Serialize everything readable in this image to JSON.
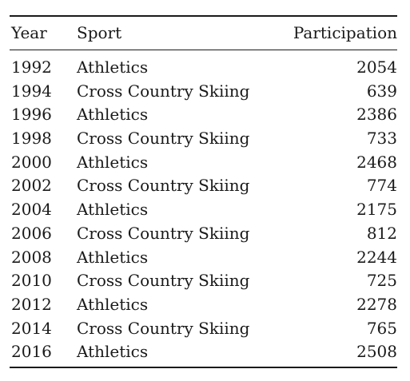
{
  "table": {
    "columns": {
      "year": "Year",
      "sport": "Sport",
      "participation": "Participation"
    },
    "rows": [
      {
        "year": "1992",
        "sport": "Athletics",
        "participation": "2054"
      },
      {
        "year": "1994",
        "sport": "Cross Country Skiing",
        "participation": "639"
      },
      {
        "year": "1996",
        "sport": "Athletics",
        "participation": "2386"
      },
      {
        "year": "1998",
        "sport": "Cross Country Skiing",
        "participation": "733"
      },
      {
        "year": "2000",
        "sport": "Athletics",
        "participation": "2468"
      },
      {
        "year": "2002",
        "sport": "Cross Country Skiing",
        "participation": "774"
      },
      {
        "year": "2004",
        "sport": "Athletics",
        "participation": "2175"
      },
      {
        "year": "2006",
        "sport": "Cross Country Skiing",
        "participation": "812"
      },
      {
        "year": "2008",
        "sport": "Athletics",
        "participation": "2244"
      },
      {
        "year": "2010",
        "sport": "Cross Country Skiing",
        "participation": "725"
      },
      {
        "year": "2012",
        "sport": "Athletics",
        "participation": "2278"
      },
      {
        "year": "2014",
        "sport": "Cross Country Skiing",
        "participation": "765"
      },
      {
        "year": "2016",
        "sport": "Athletics",
        "participation": "2508"
      }
    ]
  }
}
